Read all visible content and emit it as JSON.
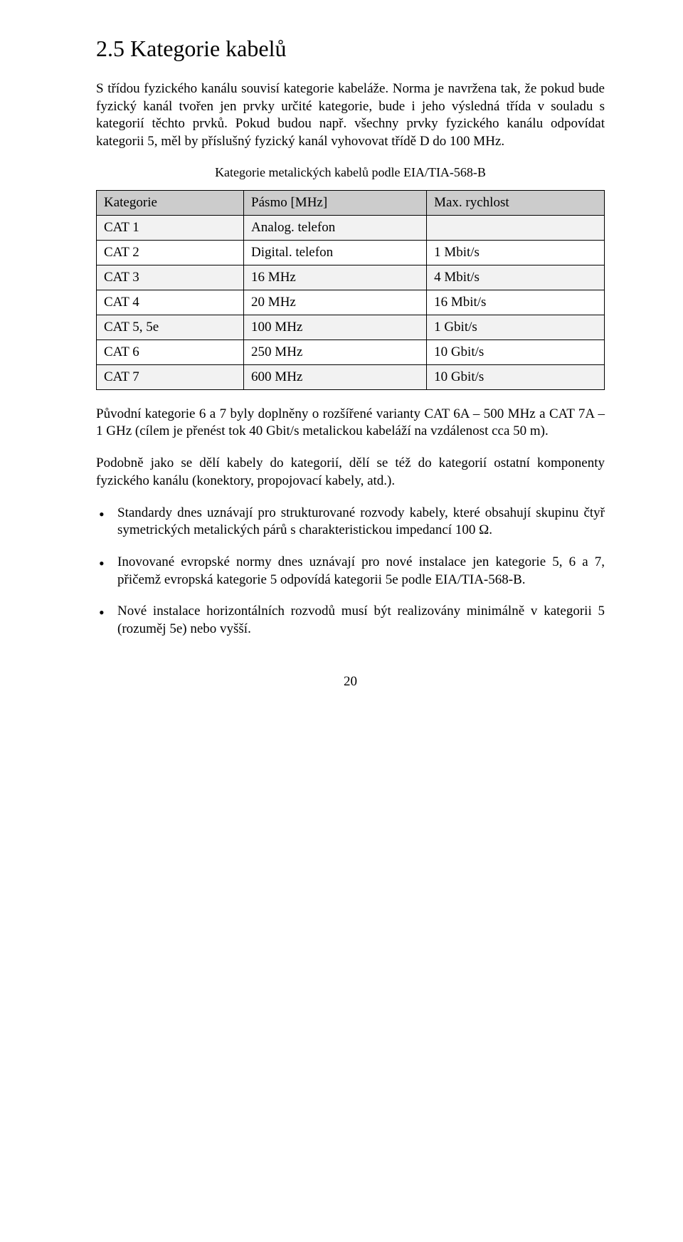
{
  "heading": "2.5  Kategorie kabelů",
  "para1": "S třídou fyzického kanálu souvisí kategorie kabeláže. Norma je navržena tak, že pokud bude fyzický kanál tvořen jen prvky určité kategorie, bude i jeho výsledná třída v souladu s kategorií těchto prvků. Pokud budou např. všechny prvky fyzického kanálu odpovídat kategorii 5, měl by příslušný fyzický kanál vyhovovat třídě D do 100 MHz.",
  "tableCaption": "Kategorie metalických kabelů podle EIA/TIA-568-B",
  "table": {
    "headers": [
      "Kategorie",
      "Pásmo [MHz]",
      "Max. rychlost"
    ],
    "rows": [
      [
        "CAT 1",
        "Analog. telefon",
        ""
      ],
      [
        "CAT 2",
        "Digital. telefon",
        "1 Mbit/s"
      ],
      [
        "CAT 3",
        "16 MHz",
        "4 Mbit/s"
      ],
      [
        "CAT 4",
        "20 MHz",
        "16 Mbit/s"
      ],
      [
        "CAT 5, 5e",
        "100 MHz",
        "1 Gbit/s"
      ],
      [
        "CAT 6",
        "250 MHz",
        "10 Gbit/s"
      ],
      [
        "CAT 7",
        "600 MHz",
        "10 Gbit/s"
      ]
    ],
    "colWidths": [
      "29%",
      "36%",
      "35%"
    ],
    "headerBg": "#cccccc",
    "rowOddBg": "#f2f2f2",
    "rowEvenBg": "#ffffff",
    "borderColor": "#000000"
  },
  "para2": "Původní kategorie 6 a 7 byly doplněny o rozšířené varianty CAT 6A – 500 MHz a CAT 7A – 1 GHz (cílem je přenést tok 40 Gbit/s metalickou kabeláží na vzdálenost cca 50 m).",
  "para3": "Podobně jako se dělí kabely do kategorií, dělí se též do kategorií ostatní komponenty fyzického kanálu (konektory, propojovací kabely, atd.).",
  "bullets": [
    "Standardy dnes uznávají pro strukturované rozvody kabely, které obsahují skupinu čtyř symetrických metalických párů s charakteristickou impedancí 100 Ω.",
    "Inovované evropské normy dnes uznávají pro nové instalace jen kategorie 5, 6 a 7, přičemž evropská kategorie 5 odpovídá kategorii 5e podle EIA/TIA-568-B.",
    "Nové instalace horizontálních rozvodů musí být realizovány minimálně v kategorii 5 (rozuměj 5e) nebo vyšší."
  ],
  "pageNumber": "20"
}
